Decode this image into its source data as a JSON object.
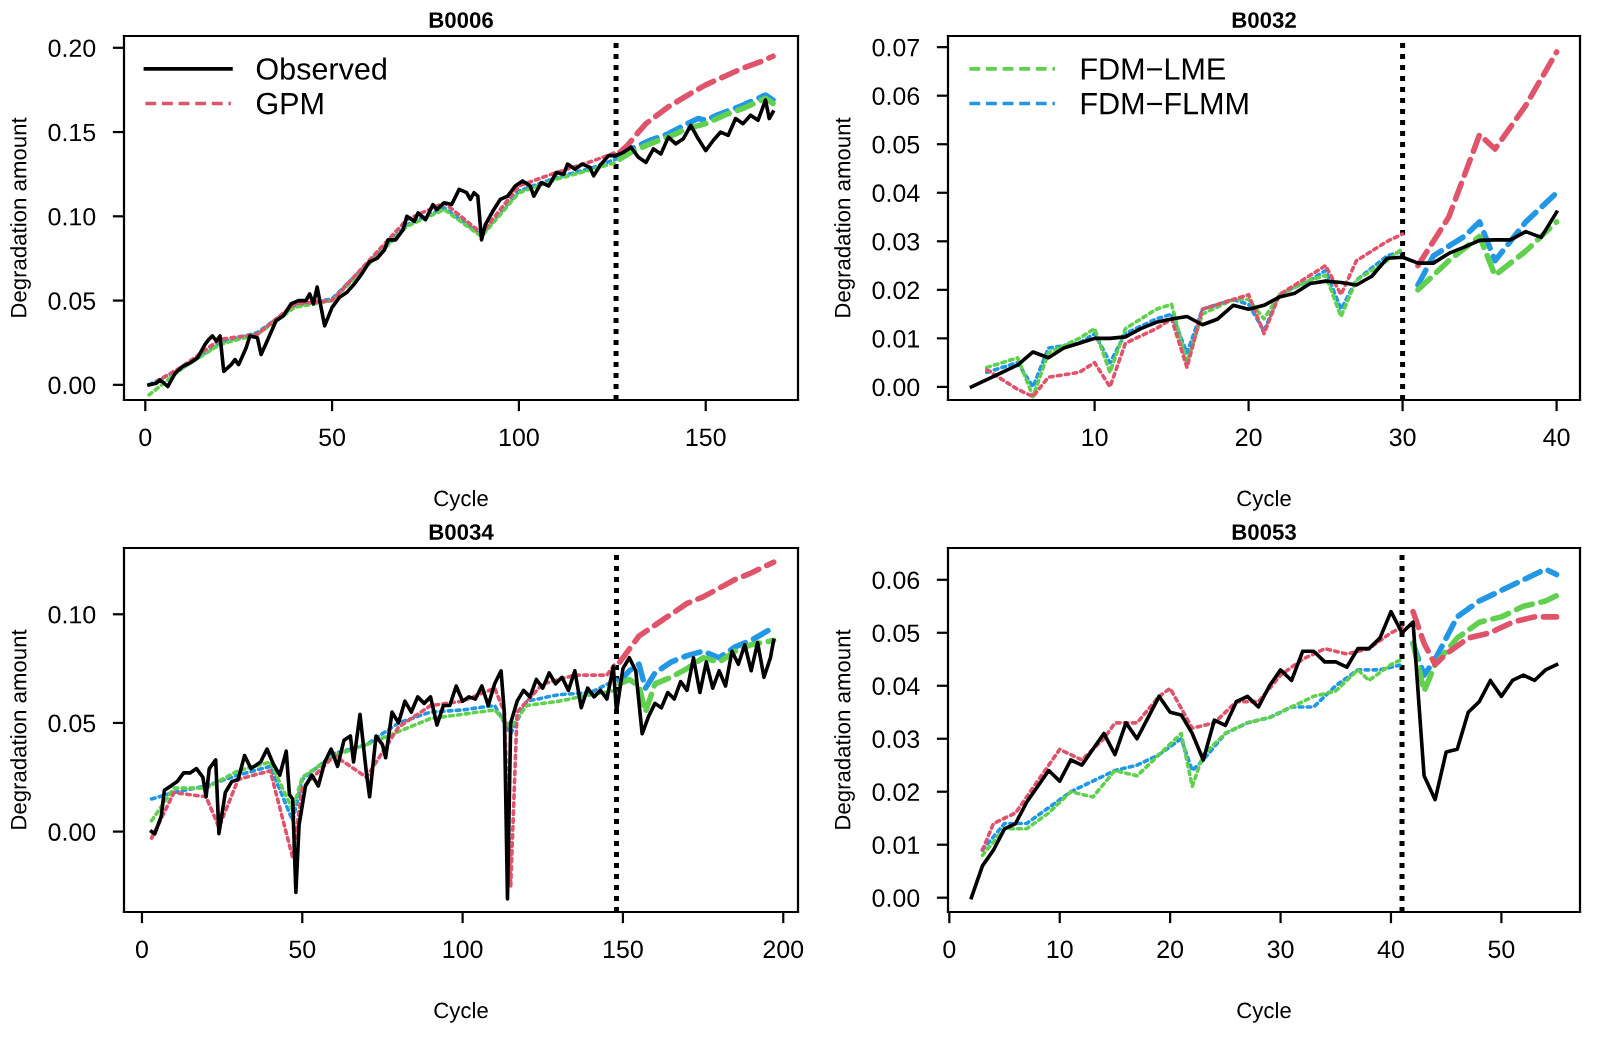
{
  "chart_data": [
    {
      "type": "line",
      "title": "B0006",
      "xlabel": "Cycle",
      "ylabel": "Degradation amount",
      "legend": "top left",
      "xlim": [
        -5.7,
        174.7
      ],
      "ylim": [
        -0.009,
        0.207
      ],
      "xticks": [
        0,
        50,
        100,
        150
      ],
      "yticks": [
        {
          "value": 0,
          "label": "0.00"
        },
        {
          "value": 0.05,
          "label": "0.05"
        },
        {
          "value": 0.1,
          "label": "0.10"
        },
        {
          "value": 0.15,
          "label": "0.15"
        },
        {
          "value": 0.2,
          "label": "0.20"
        }
      ],
      "ref_lines": [
        {
          "axis": "x",
          "value": 126,
          "color": "#000000",
          "line_style": "dotted"
        }
      ],
      "series": [
        {
          "name": "Observed",
          "color": "#000000",
          "line_style": "solid",
          "x": [
            1,
            3,
            4,
            6,
            8,
            10,
            12,
            14,
            16,
            17,
            18,
            19,
            20,
            21,
            23,
            24,
            25,
            27,
            28,
            30,
            31,
            33,
            35,
            37,
            39,
            41,
            43,
            44,
            45,
            46,
            48,
            50,
            52,
            54,
            56,
            58,
            60,
            62,
            64,
            65,
            67,
            69,
            70,
            72,
            73,
            75,
            77,
            78,
            80,
            82,
            84,
            86,
            87,
            88,
            89,
            90,
            91,
            93,
            95,
            97,
            99,
            101,
            103,
            104,
            106,
            108,
            110,
            112,
            113,
            115,
            117,
            119,
            120,
            122,
            124,
            126,
            128,
            130,
            132,
            134,
            136,
            138,
            140,
            142,
            144,
            146,
            148,
            150,
            152,
            154,
            156,
            158,
            160,
            162,
            164,
            166,
            167,
            168
          ],
          "values": [
            0,
            0.001,
            0.003,
            -0.001,
            0.007,
            0.011,
            0.013,
            0.016,
            0.024,
            0.027,
            0.029,
            0.026,
            0.029,
            0.008,
            0.012,
            0.015,
            0.012,
            0.022,
            0.029,
            0.028,
            0.018,
            0.028,
            0.038,
            0.041,
            0.048,
            0.05,
            0.05,
            0.054,
            0.048,
            0.058,
            0.035,
            0.046,
            0.052,
            0.055,
            0.06,
            0.066,
            0.073,
            0.075,
            0.08,
            0.086,
            0.086,
            0.092,
            0.1,
            0.097,
            0.102,
            0.098,
            0.107,
            0.104,
            0.108,
            0.107,
            0.116,
            0.114,
            0.11,
            0.114,
            0.112,
            0.086,
            0.095,
            0.103,
            0.11,
            0.112,
            0.118,
            0.121,
            0.118,
            0.112,
            0.12,
            0.118,
            0.126,
            0.125,
            0.131,
            0.128,
            0.131,
            0.129,
            0.124,
            0.131,
            0.136,
            0.136,
            0.138,
            0.141,
            0.135,
            0.132,
            0.14,
            0.137,
            0.147,
            0.143,
            0.146,
            0.154,
            0.146,
            0.139,
            0.145,
            0.15,
            0.148,
            0.158,
            0.155,
            0.16,
            0.157,
            0.169,
            0.158,
            0.162
          ]
        },
        {
          "color": "#df536b",
          "line_style": "dotted",
          "x": [
            3,
            10,
            20,
            30,
            40,
            50,
            60,
            70,
            80,
            90,
            100,
            110,
            120,
            126
          ],
          "values": [
            0.002,
            0.011,
            0.027,
            0.03,
            0.048,
            0.05,
            0.074,
            0.098,
            0.108,
            0.09,
            0.118,
            0.126,
            0.133,
            0.138
          ]
        },
        {
          "name": "GPM",
          "color": "#df536b",
          "line_style": "dashed",
          "x": [
            127,
            129,
            132,
            134,
            140,
            146,
            150,
            155,
            160,
            165,
            168
          ],
          "values": [
            0.138,
            0.142,
            0.15,
            0.155,
            0.165,
            0.173,
            0.178,
            0.183,
            0.188,
            0.192,
            0.195
          ]
        },
        {
          "color": "#61d04f",
          "line_style": "dotted",
          "x": [
            1,
            10,
            20,
            30,
            40,
            50,
            60,
            70,
            80,
            90,
            100,
            110,
            120,
            126
          ],
          "values": [
            -0.006,
            0.01,
            0.024,
            0.03,
            0.046,
            0.05,
            0.072,
            0.094,
            0.104,
            0.088,
            0.114,
            0.122,
            0.128,
            0.132
          ]
        },
        {
          "color": "#61d04f",
          "line_style": "dashed",
          "x": [
            127,
            130,
            135,
            140,
            145,
            150,
            155,
            160,
            166,
            168
          ],
          "values": [
            0.134,
            0.138,
            0.143,
            0.147,
            0.152,
            0.155,
            0.16,
            0.164,
            0.17,
            0.167
          ]
        },
        {
          "color": "#2297e6",
          "line_style": "dotted",
          "x": [
            1,
            10,
            20,
            30,
            40,
            50,
            60,
            70,
            80,
            90,
            100,
            110,
            120,
            126
          ],
          "values": [
            0,
            0.01,
            0.025,
            0.031,
            0.047,
            0.051,
            0.073,
            0.095,
            0.105,
            0.089,
            0.115,
            0.123,
            0.129,
            0.134
          ]
        },
        {
          "color": "#2297e6",
          "line_style": "dashed",
          "x": [
            127,
            130,
            135,
            140,
            145,
            148,
            150,
            153,
            160,
            166,
            168
          ],
          "values": [
            0.135,
            0.14,
            0.145,
            0.149,
            0.155,
            0.158,
            0.157,
            0.16,
            0.166,
            0.172,
            0.169
          ]
        }
      ]
    },
    {
      "type": "line",
      "title": "B0032",
      "xlabel": "Cycle",
      "ylabel": "Degradation amount",
      "legend": "top left",
      "xlim": [
        0.48,
        41.52
      ],
      "ylim": [
        -0.0027,
        0.0723
      ],
      "xticks": [
        10,
        20,
        30,
        40
      ],
      "yticks": [
        {
          "value": 0,
          "label": "0.00"
        },
        {
          "value": 0.01,
          "label": "0.01"
        },
        {
          "value": 0.02,
          "label": "0.02"
        },
        {
          "value": 0.03,
          "label": "0.03"
        },
        {
          "value": 0.04,
          "label": "0.04"
        },
        {
          "value": 0.05,
          "label": "0.05"
        },
        {
          "value": 0.06,
          "label": "0.06"
        },
        {
          "value": 0.07,
          "label": "0.07"
        }
      ],
      "ref_lines": [
        {
          "axis": "x",
          "value": 30,
          "color": "#000000",
          "line_style": "dotted"
        }
      ],
      "series": [
        {
          "color": "#000000",
          "line_style": "solid",
          "x": [
            2,
            3,
            4,
            5,
            6,
            7,
            8,
            9,
            10,
            11,
            12,
            13,
            14,
            15,
            16,
            17,
            18,
            19,
            20,
            21,
            22,
            23,
            24,
            25,
            26,
            27,
            28,
            29,
            30,
            31,
            32,
            33,
            34,
            35,
            36,
            37,
            38,
            39,
            40
          ],
          "values": [
            0,
            0.0015,
            0.003,
            0.0045,
            0.0072,
            0.006,
            0.008,
            0.009,
            0.01,
            0.01,
            0.0103,
            0.012,
            0.0133,
            0.014,
            0.0145,
            0.0128,
            0.014,
            0.0168,
            0.016,
            0.0168,
            0.0185,
            0.0193,
            0.0213,
            0.0218,
            0.0215,
            0.021,
            0.0228,
            0.0265,
            0.0267,
            0.0255,
            0.0255,
            0.0275,
            0.0288,
            0.0302,
            0.0303,
            0.0303,
            0.032,
            0.0308,
            0.036
          ]
        },
        {
          "color": "#df536b",
          "line_style": "dotted",
          "x": [
            3,
            5,
            6,
            7,
            9,
            10,
            11,
            12,
            14,
            15,
            16,
            17,
            19,
            20,
            21,
            22,
            24,
            25,
            26,
            27,
            29,
            30
          ],
          "values": [
            0.0035,
            -0.0005,
            -0.002,
            0.002,
            0.003,
            0.005,
            0,
            0.009,
            0.012,
            0.014,
            0.004,
            0.016,
            0.018,
            0.019,
            0.011,
            0.019,
            0.023,
            0.025,
            0.019,
            0.026,
            0.03,
            0.0315
          ]
        },
        {
          "color": "#df536b",
          "line_style": "dashed",
          "x": [
            31,
            33,
            35,
            36,
            38,
            40
          ],
          "values": [
            0.025,
            0.035,
            0.052,
            0.049,
            0.058,
            0.069
          ]
        },
        {
          "color": "#61d04f",
          "line_style": "dotted",
          "x": [
            3,
            5,
            6,
            7,
            9,
            10,
            11,
            12,
            14,
            15,
            16,
            17,
            19,
            20,
            21,
            22,
            24,
            25,
            26,
            27,
            29,
            30
          ],
          "values": [
            0.004,
            0.006,
            -0.002,
            0.007,
            0.01,
            0.012,
            0.003,
            0.012,
            0.016,
            0.017,
            0.005,
            0.015,
            0.018,
            0.018,
            0.014,
            0.019,
            0.022,
            0.023,
            0.0145,
            0.022,
            0.026,
            0.0285
          ]
        },
        {
          "name": "FDM−LME",
          "color": "#61d04f",
          "line_style": "dashed",
          "x": [
            31,
            33,
            35,
            36,
            38,
            40
          ],
          "values": [
            0.02,
            0.026,
            0.031,
            0.023,
            0.028,
            0.034
          ]
        },
        {
          "color": "#2297e6",
          "line_style": "dotted",
          "x": [
            3,
            5,
            6,
            7,
            9,
            10,
            11,
            12,
            14,
            15,
            16,
            17,
            19,
            20,
            21,
            22,
            24,
            25,
            26,
            27,
            29,
            30
          ],
          "values": [
            0.003,
            0.005,
            0,
            0.008,
            0.009,
            0.011,
            0.005,
            0.011,
            0.014,
            0.015,
            0.007,
            0.016,
            0.018,
            0.017,
            0.0115,
            0.019,
            0.022,
            0.024,
            0.016,
            0.022,
            0.027,
            0.028
          ]
        },
        {
          "name": "FDM−FLMM",
          "color": "#2297e6",
          "line_style": "dashed",
          "x": [
            31,
            32,
            34,
            35,
            36,
            38,
            40
          ],
          "values": [
            0.021,
            0.027,
            0.031,
            0.034,
            0.026,
            0.034,
            0.04
          ]
        }
      ]
    },
    {
      "type": "line",
      "title": "B0034",
      "xlabel": "Cycle",
      "ylabel": "Degradation amount",
      "xlim": [
        -5.6,
        204.6
      ],
      "ylim": [
        -0.037,
        0.1305
      ],
      "xticks": [
        0,
        50,
        100,
        150,
        200
      ],
      "yticks": [
        {
          "value": 0,
          "label": "0.00"
        },
        {
          "value": 0.05,
          "label": "0.05"
        },
        {
          "value": 0.1,
          "label": "0.10"
        }
      ],
      "ref_lines": [
        {
          "axis": "x",
          "value": 148,
          "color": "#000000",
          "line_style": "dotted"
        }
      ],
      "series": [
        {
          "color": "#000000",
          "line_style": "solid",
          "x": [
            3,
            4,
            6,
            7,
            9,
            11,
            13,
            15,
            17,
            19,
            20,
            21,
            23,
            24,
            26,
            28,
            30,
            32,
            34,
            37,
            39,
            41,
            43,
            45,
            46,
            47,
            48,
            49,
            51,
            53,
            55,
            57,
            59,
            61,
            63,
            65,
            66,
            68,
            70,
            71,
            73,
            75,
            76,
            78,
            80,
            82,
            84,
            86,
            88,
            90,
            92,
            94,
            96,
            98,
            100,
            102,
            104,
            106,
            108,
            110,
            112,
            113,
            114,
            115,
            117,
            119,
            121,
            123,
            125,
            127,
            129,
            131,
            133,
            135,
            137,
            139,
            141,
            143,
            145,
            147,
            148,
            150,
            152,
            154,
            156,
            158,
            160,
            162,
            164,
            166,
            168,
            170,
            172,
            174,
            176,
            178,
            180,
            182,
            184,
            186,
            188,
            190,
            192,
            194,
            196,
            197
          ],
          "values": [
            0,
            -0.001,
            0.007,
            0.019,
            0.021,
            0.023,
            0.027,
            0.027,
            0.029,
            0.025,
            0.016,
            0.029,
            0.033,
            -0.001,
            0.018,
            0.023,
            0.024,
            0.035,
            0.029,
            0.032,
            0.038,
            0.031,
            0.026,
            0.037,
            0.017,
            0.015,
            -0.028,
            0.003,
            0.021,
            0.026,
            0.021,
            0.032,
            0.038,
            0.03,
            0.042,
            0.044,
            0.032,
            0.054,
            0.027,
            0.016,
            0.044,
            0.04,
            0.034,
            0.055,
            0.05,
            0.06,
            0.055,
            0.062,
            0.059,
            0.062,
            0.049,
            0.058,
            0.058,
            0.067,
            0.06,
            0.062,
            0.061,
            0.067,
            0.058,
            0.068,
            0.074,
            0.055,
            -0.031,
            0.05,
            0.06,
            0.065,
            0.062,
            0.07,
            0.066,
            0.073,
            0.068,
            0.071,
            0.065,
            0.074,
            0.057,
            0.066,
            0.062,
            0.065,
            0.061,
            0.076,
            0.055,
            0.075,
            0.08,
            0.074,
            0.045,
            0.053,
            0.059,
            0.057,
            0.064,
            0.061,
            0.069,
            0.065,
            0.08,
            0.064,
            0.078,
            0.066,
            0.074,
            0.067,
            0.083,
            0.077,
            0.086,
            0.074,
            0.087,
            0.071,
            0.08,
            0.088
          ]
        },
        {
          "color": "#df536b",
          "line_style": "dotted",
          "x": [
            3,
            10,
            20,
            24,
            30,
            40,
            47,
            50,
            60,
            70,
            80,
            90,
            100,
            110,
            113,
            115,
            117,
            125,
            135,
            145,
            148
          ],
          "values": [
            -0.003,
            0.018,
            0.016,
            0.002,
            0.024,
            0.028,
            -0.012,
            0.02,
            0.035,
            0.025,
            0.048,
            0.058,
            0.06,
            0.066,
            0.055,
            -0.025,
            0.055,
            0.068,
            0.072,
            0.072,
            0.078
          ]
        },
        {
          "color": "#df536b",
          "line_style": "dashed",
          "x": [
            149,
            152,
            155,
            160,
            165,
            170,
            175,
            180,
            185,
            190,
            197
          ],
          "values": [
            0.078,
            0.084,
            0.09,
            0.095,
            0.1,
            0.105,
            0.108,
            0.112,
            0.116,
            0.119,
            0.124
          ]
        },
        {
          "color": "#61d04f",
          "line_style": "dotted",
          "x": [
            3,
            10,
            20,
            30,
            40,
            47,
            50,
            60,
            70,
            80,
            90,
            100,
            110,
            115,
            120,
            130,
            140,
            148
          ],
          "values": [
            0.005,
            0.02,
            0.02,
            0.028,
            0.032,
            0.01,
            0.025,
            0.035,
            0.04,
            0.046,
            0.052,
            0.054,
            0.056,
            0.048,
            0.058,
            0.06,
            0.063,
            0.065
          ]
        },
        {
          "color": "#61d04f",
          "line_style": "dashed",
          "x": [
            149,
            152,
            155,
            157,
            160,
            165,
            170,
            175,
            180,
            185,
            190,
            197
          ],
          "values": [
            0.068,
            0.07,
            0.067,
            0.055,
            0.068,
            0.071,
            0.075,
            0.08,
            0.078,
            0.083,
            0.086,
            0.088
          ]
        },
        {
          "color": "#2297e6",
          "line_style": "dotted",
          "x": [
            3,
            10,
            20,
            30,
            40,
            47,
            50,
            60,
            70,
            80,
            90,
            100,
            110,
            115,
            120,
            130,
            140,
            148
          ],
          "values": [
            0.015,
            0.018,
            0.021,
            0.026,
            0.03,
            0.005,
            0.024,
            0.036,
            0.04,
            0.05,
            0.055,
            0.056,
            0.058,
            0.045,
            0.06,
            0.063,
            0.064,
            0.07
          ]
        },
        {
          "color": "#2297e6",
          "line_style": "dashed",
          "x": [
            149,
            152,
            155,
            157,
            160,
            165,
            170,
            175,
            180,
            185,
            190,
            197
          ],
          "values": [
            0.069,
            0.074,
            0.077,
            0.066,
            0.073,
            0.078,
            0.081,
            0.083,
            0.08,
            0.085,
            0.088,
            0.094
          ]
        }
      ]
    },
    {
      "type": "line",
      "title": "B0053",
      "xlabel": "Cycle",
      "ylabel": "Degradation amount",
      "xlim": [
        -0.12,
        57.12
      ],
      "ylim": [
        -0.0027,
        0.066
      ],
      "xticks": [
        0,
        10,
        20,
        30,
        40,
        50
      ],
      "yticks": [
        {
          "value": 0,
          "label": "0.00"
        },
        {
          "value": 0.01,
          "label": "0.01"
        },
        {
          "value": 0.02,
          "label": "0.02"
        },
        {
          "value": 0.03,
          "label": "0.03"
        },
        {
          "value": 0.04,
          "label": "0.04"
        },
        {
          "value": 0.05,
          "label": "0.05"
        },
        {
          "value": 0.06,
          "label": "0.06"
        }
      ],
      "ref_lines": [
        {
          "axis": "x",
          "value": 41,
          "color": "#000000",
          "line_style": "dotted"
        }
      ],
      "series": [
        {
          "color": "#000000",
          "line_style": "solid",
          "x": [
            2,
            3,
            4,
            5,
            6,
            7,
            8,
            9,
            10,
            11,
            12,
            13,
            14,
            15,
            16,
            17,
            18,
            19,
            20,
            21,
            22,
            23,
            24,
            25,
            26,
            27,
            28,
            29,
            30,
            31,
            32,
            33,
            34,
            35,
            36,
            37,
            38,
            39,
            40,
            41,
            42,
            43,
            44,
            45,
            46,
            47,
            48,
            49,
            50,
            51,
            52,
            53,
            54,
            55
          ],
          "values": [
            0,
            0.006,
            0.009,
            0.013,
            0.014,
            0.018,
            0.021,
            0.024,
            0.022,
            0.026,
            0.025,
            0.028,
            0.031,
            0.027,
            0.033,
            0.03,
            0.034,
            0.038,
            0.035,
            0.0345,
            0.031,
            0.026,
            0.0335,
            0.0325,
            0.037,
            0.038,
            0.036,
            0.04,
            0.043,
            0.041,
            0.0465,
            0.0465,
            0.0445,
            0.0445,
            0.0435,
            0.047,
            0.047,
            0.049,
            0.054,
            0.05,
            0.052,
            0.023,
            0.0185,
            0.0275,
            0.028,
            0.035,
            0.037,
            0.041,
            0.038,
            0.041,
            0.042,
            0.041,
            0.043,
            0.044
          ]
        },
        {
          "color": "#df536b",
          "line_style": "dotted",
          "x": [
            3,
            4,
            6,
            8,
            10,
            12,
            14,
            15,
            17,
            19,
            20,
            22,
            24,
            26,
            28,
            30,
            32,
            34,
            36,
            38,
            40,
            41
          ],
          "values": [
            0.009,
            0.014,
            0.016,
            0.022,
            0.028,
            0.026,
            0.03,
            0.033,
            0.033,
            0.038,
            0.0395,
            0.032,
            0.033,
            0.037,
            0.037,
            0.042,
            0.045,
            0.047,
            0.046,
            0.047,
            0.05,
            0.051
          ]
        },
        {
          "color": "#df536b",
          "line_style": "dashed",
          "x": [
            42,
            43,
            44,
            45,
            47,
            49,
            51,
            53,
            55
          ],
          "values": [
            0.054,
            0.048,
            0.044,
            0.046,
            0.049,
            0.05,
            0.052,
            0.053,
            0.053
          ]
        },
        {
          "color": "#61d04f",
          "line_style": "dotted",
          "x": [
            3,
            5,
            7,
            9,
            11,
            13,
            15,
            17,
            19,
            21,
            22,
            23,
            25,
            27,
            29,
            31,
            33,
            35,
            37,
            38,
            40,
            41
          ],
          "values": [
            0.008,
            0.013,
            0.013,
            0.016,
            0.02,
            0.019,
            0.024,
            0.023,
            0.027,
            0.031,
            0.021,
            0.027,
            0.031,
            0.033,
            0.034,
            0.036,
            0.038,
            0.039,
            0.043,
            0.041,
            0.044,
            0.045
          ]
        },
        {
          "color": "#61d04f",
          "line_style": "dashed",
          "x": [
            42,
            43,
            44,
            46,
            48,
            50,
            52,
            54,
            55
          ],
          "values": [
            0.048,
            0.039,
            0.044,
            0.049,
            0.052,
            0.053,
            0.055,
            0.056,
            0.057
          ]
        },
        {
          "color": "#2297e6",
          "line_style": "dotted",
          "x": [
            3,
            5,
            7,
            9,
            11,
            13,
            15,
            17,
            19,
            21,
            22,
            23,
            25,
            27,
            29,
            31,
            33,
            35,
            37,
            39,
            41
          ],
          "values": [
            0.009,
            0.014,
            0.014,
            0.017,
            0.02,
            0.022,
            0.024,
            0.025,
            0.027,
            0.03,
            0.024,
            0.026,
            0.031,
            0.033,
            0.034,
            0.036,
            0.036,
            0.04,
            0.043,
            0.043,
            0.044
          ]
        },
        {
          "color": "#2297e6",
          "line_style": "dashed",
          "x": [
            42,
            43,
            44,
            46,
            48,
            50,
            52,
            54,
            55
          ],
          "values": [
            0.048,
            0.042,
            0.045,
            0.053,
            0.056,
            0.058,
            0.06,
            0.062,
            0.061
          ]
        }
      ]
    }
  ]
}
